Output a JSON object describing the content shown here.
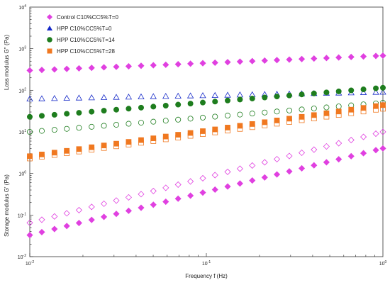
{
  "chart_data": {
    "type": "scatter",
    "title": "",
    "xlabel": "Frequency  f  (Hz)",
    "ylabel_top": "Loss modulus  G''  (Pa)",
    "ylabel_bottom": "Storage modulus  G'  (Pa)",
    "x_scale": "log",
    "y_scale": "log",
    "xlim": [
      0.01,
      1
    ],
    "ylim": [
      0.01,
      10000
    ],
    "x_ticks": [
      "10-2",
      "10-1",
      "100"
    ],
    "y_ticks": [
      "10-2",
      "10-1",
      "100",
      "101",
      "102",
      "103",
      "104"
    ],
    "grid": false,
    "legend_position": "top-left",
    "legend": [
      {
        "label": "Control C10%CC5%T=0",
        "color": "#e040e0",
        "marker": "diamond"
      },
      {
        "label": "HPP C10%CC5%T=0",
        "color": "#1428c8",
        "marker": "triangle"
      },
      {
        "label": "HPP C10%CC5%T=14",
        "color": "#1e7d1e",
        "marker": "circle"
      },
      {
        "label": "HPP C10%CC5%T=28",
        "color": "#f07820",
        "marker": "square"
      }
    ],
    "x": [
      0.01,
      0.0117,
      0.0138,
      0.0162,
      0.019,
      0.0224,
      0.0263,
      0.0309,
      0.0363,
      0.0427,
      0.0501,
      0.0589,
      0.0692,
      0.0813,
      0.0955,
      0.112,
      0.132,
      0.155,
      0.182,
      0.214,
      0.251,
      0.295,
      0.347,
      0.407,
      0.479,
      0.562,
      0.661,
      0.776,
      0.912,
      1.0
    ],
    "series": [
      {
        "series_index": 0,
        "modulus": "G''",
        "filled": true,
        "y_start": 300,
        "y_end": 680
      },
      {
        "series_index": 1,
        "modulus": "G'",
        "filled": false,
        "y_start": 62,
        "y_end": 90
      },
      {
        "series_index": 2,
        "modulus": "G''",
        "filled": true,
        "y_start": 23,
        "y_end": 115
      },
      {
        "series_index": 2,
        "modulus": "G'",
        "filled": false,
        "y_start": 10,
        "y_end": 50
      },
      {
        "series_index": 3,
        "modulus": "G''",
        "filled": true,
        "y_start": 2.6,
        "y_end": 44
      },
      {
        "series_index": 3,
        "modulus": "G'",
        "filled": false,
        "y_start": 2.3,
        "y_end": 36
      },
      {
        "series_index": 0,
        "modulus": "G'",
        "filled": false,
        "y_start": 0.065,
        "y_end": 10
      },
      {
        "series_index": 0,
        "modulus": "G''",
        "filled": true,
        "y_start": 0.033,
        "y_end": 4
      }
    ]
  }
}
